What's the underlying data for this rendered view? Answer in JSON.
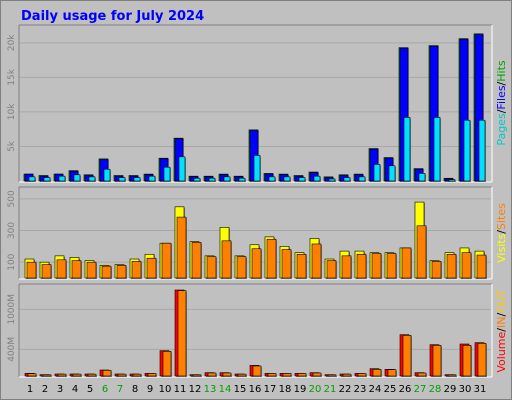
{
  "title": "Daily usage for July 2024",
  "colors": {
    "hits": "#00a000",
    "files": "#0000ff",
    "pages": "#00e0ff",
    "visits": "#ffff00",
    "sites": "#ff8000",
    "kbin": "#ff8000",
    "kbout": "#ffc800",
    "volume": "#ff0000",
    "weekend": "#00a000",
    "weekday": "#000000"
  },
  "legends": {
    "top": [
      {
        "text": "Pages",
        "color": "#00c8c8"
      },
      {
        "text": "/",
        "color": "#000000"
      },
      {
        "text": "Files",
        "color": "#0000ff"
      },
      {
        "text": "/",
        "color": "#000000"
      },
      {
        "text": "Hits",
        "color": "#00a000"
      }
    ],
    "mid": [
      {
        "text": "Visits",
        "color": "#ffff00"
      },
      {
        "text": "/",
        "color": "#000000"
      },
      {
        "text": "Sites",
        "color": "#ff8000"
      }
    ],
    "bot": [
      {
        "text": "Volume",
        "color": "#ff0000"
      },
      {
        "text": "/",
        "color": "#000000"
      },
      {
        "text": "IN",
        "color": "#ff8000"
      },
      {
        "text": "/",
        "color": "#000000"
      },
      {
        "text": "OUT",
        "color": "#ffc800"
      }
    ]
  },
  "chart_data": [
    {
      "type": "bar",
      "name": "hits-files-pages",
      "categories": [
        "1",
        "2",
        "3",
        "4",
        "5",
        "6",
        "7",
        "8",
        "9",
        "10",
        "11",
        "12",
        "13",
        "14",
        "15",
        "16",
        "17",
        "18",
        "19",
        "20",
        "21",
        "22",
        "23",
        "24",
        "25",
        "26",
        "27",
        "28",
        "29",
        "30",
        "31"
      ],
      "weekend_days": [
        "6",
        "7",
        "13",
        "14",
        "20",
        "21",
        "27",
        "28"
      ],
      "ylim": [
        0,
        22000
      ],
      "yticks": [
        {
          "v": 5000,
          "label": "5k"
        },
        {
          "v": 10000,
          "label": "10k"
        },
        {
          "v": 15000,
          "label": "15k"
        },
        {
          "v": 20000,
          "label": "20k"
        }
      ],
      "series": [
        {
          "name": "Hits",
          "values": [
            1000,
            800,
            1000,
            1500,
            900,
            3200,
            800,
            800,
            1000,
            3300,
            6200,
            700,
            700,
            1000,
            700,
            7400,
            1100,
            1000,
            800,
            1300,
            600,
            900,
            1000,
            4700,
            3400,
            19300,
            1800,
            19600,
            400,
            20600,
            21300
          ]
        },
        {
          "name": "Files",
          "values": [
            1000,
            700,
            1000,
            1400,
            800,
            3100,
            700,
            700,
            900,
            3200,
            6100,
            600,
            600,
            900,
            600,
            7300,
            1000,
            900,
            700,
            1200,
            500,
            800,
            900,
            4600,
            3300,
            19200,
            1700,
            19500,
            300,
            20500,
            21200
          ]
        },
        {
          "name": "Pages",
          "values": [
            600,
            500,
            700,
            900,
            600,
            1700,
            500,
            500,
            700,
            2000,
            3500,
            400,
            400,
            600,
            400,
            3700,
            600,
            600,
            500,
            700,
            300,
            500,
            600,
            2400,
            2200,
            9200,
            1100,
            9200,
            200,
            8800,
            8800
          ]
        }
      ]
    },
    {
      "type": "bar",
      "name": "visits-sites",
      "categories": [
        "1",
        "2",
        "3",
        "4",
        "5",
        "6",
        "7",
        "8",
        "9",
        "10",
        "11",
        "12",
        "13",
        "14",
        "15",
        "16",
        "17",
        "18",
        "19",
        "20",
        "21",
        "22",
        "23",
        "24",
        "25",
        "26",
        "27",
        "28",
        "29",
        "30",
        "31"
      ],
      "ylim": [
        0,
        550
      ],
      "yticks": [
        {
          "v": 100,
          "label": "100"
        },
        {
          "v": 300,
          "label": "300"
        },
        {
          "v": 500,
          "label": "500"
        }
      ],
      "series": [
        {
          "name": "Visits",
          "values": [
            120,
            100,
            140,
            130,
            110,
            80,
            85,
            120,
            150,
            220,
            450,
            230,
            140,
            320,
            140,
            210,
            260,
            200,
            160,
            250,
            120,
            170,
            170,
            160,
            160,
            190,
            480,
            110,
            160,
            190,
            170
          ]
        },
        {
          "name": "Sites",
          "values": [
            100,
            85,
            115,
            110,
            100,
            75,
            80,
            105,
            125,
            220,
            385,
            225,
            135,
            235,
            135,
            185,
            245,
            180,
            150,
            215,
            110,
            140,
            150,
            155,
            155,
            190,
            330,
            105,
            150,
            160,
            145
          ]
        }
      ]
    },
    {
      "type": "bar",
      "name": "volume",
      "categories": [
        "1",
        "2",
        "3",
        "4",
        "5",
        "6",
        "7",
        "8",
        "9",
        "10",
        "11",
        "12",
        "13",
        "14",
        "15",
        "16",
        "17",
        "18",
        "19",
        "20",
        "21",
        "22",
        "23",
        "24",
        "25",
        "26",
        "27",
        "28",
        "29",
        "30",
        "31"
      ],
      "ylim": [
        0,
        1350
      ],
      "yticks": [
        {
          "v": 400,
          "label": "400M"
        },
        {
          "v": 1000,
          "label": "1000M"
        }
      ],
      "series": [
        {
          "name": "Volume",
          "values": [
            40,
            20,
            30,
            30,
            30,
            90,
            30,
            30,
            40,
            380,
            1290,
            20,
            50,
            50,
            30,
            160,
            40,
            40,
            40,
            50,
            20,
            30,
            40,
            110,
            100,
            620,
            50,
            470,
            20,
            480,
            500
          ]
        },
        {
          "name": "IN",
          "values": [
            35,
            18,
            28,
            28,
            28,
            85,
            28,
            28,
            38,
            370,
            1280,
            18,
            45,
            45,
            28,
            150,
            38,
            38,
            38,
            45,
            18,
            28,
            38,
            100,
            95,
            610,
            45,
            460,
            18,
            460,
            490
          ]
        }
      ]
    }
  ]
}
